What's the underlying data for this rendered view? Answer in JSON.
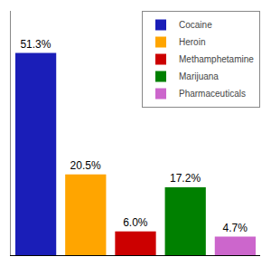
{
  "chart_data": {
    "type": "bar",
    "categories": [
      "Cocaine",
      "Heroin",
      "Methamphetamine",
      "Marijuana",
      "Pharmaceuticals"
    ],
    "values": [
      51.3,
      20.5,
      6.0,
      17.2,
      4.7
    ],
    "value_labels": [
      "51.3%",
      "20.5%",
      "6.0%",
      "17.2%",
      "4.7%"
    ],
    "colors": [
      "#1a1eb8",
      "#ffa500",
      "#cc0000",
      "#008000",
      "#cc66cc"
    ],
    "ylim": [
      0,
      62
    ],
    "data_labels": true,
    "tick_labels": false,
    "legend": "upper right"
  }
}
